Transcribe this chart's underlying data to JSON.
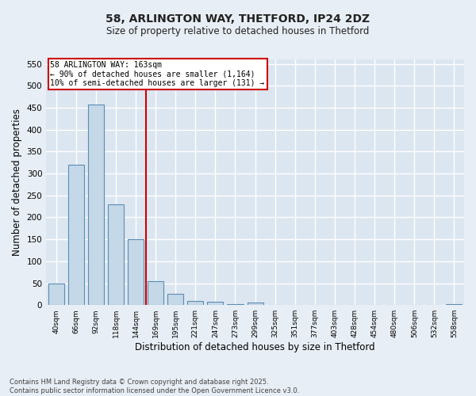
{
  "title_line1": "58, ARLINGTON WAY, THETFORD, IP24 2DZ",
  "title_line2": "Size of property relative to detached houses in Thetford",
  "xlabel": "Distribution of detached houses by size in Thetford",
  "ylabel": "Number of detached properties",
  "footer_line1": "Contains HM Land Registry data © Crown copyright and database right 2025.",
  "footer_line2": "Contains public sector information licensed under the Open Government Licence v3.0.",
  "categories": [
    "40sqm",
    "66sqm",
    "92sqm",
    "118sqm",
    "144sqm",
    "169sqm",
    "195sqm",
    "221sqm",
    "247sqm",
    "273sqm",
    "299sqm",
    "325sqm",
    "351sqm",
    "377sqm",
    "403sqm",
    "428sqm",
    "454sqm",
    "480sqm",
    "506sqm",
    "532sqm",
    "558sqm"
  ],
  "values": [
    50,
    320,
    457,
    230,
    150,
    55,
    25,
    10,
    8,
    2,
    5,
    0,
    0,
    0,
    0,
    0,
    0,
    0,
    0,
    0,
    3
  ],
  "bar_color": "#c5d8e8",
  "bar_edge_color": "#5a8db5",
  "bg_color": "#dce6f0",
  "grid_color": "#ffffff",
  "fig_bg_color": "#e8eef5",
  "annotation_text_line1": "58 ARLINGTON WAY: 163sqm",
  "annotation_text_line2": "← 90% of detached houses are smaller (1,164)",
  "annotation_text_line3": "10% of semi-detached houses are larger (131) →",
  "vline_x": 4.5,
  "vline_color": "#cc0000",
  "annotation_box_color": "#cc0000",
  "ylim": [
    0,
    560
  ],
  "yticks": [
    0,
    50,
    100,
    150,
    200,
    250,
    300,
    350,
    400,
    450,
    500,
    550
  ]
}
